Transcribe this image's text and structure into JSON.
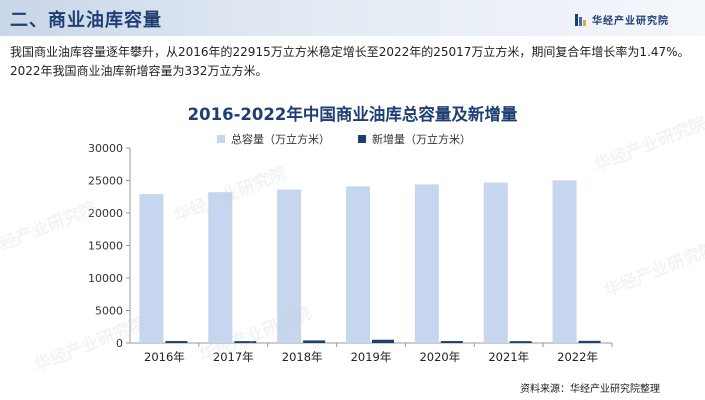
{
  "header": {
    "title": "二、商业油库容量",
    "brand": "华经产业研究院"
  },
  "intro": "我国商业油库容量逐年攀升，从2016年的22915万立方米稳定增长至2022年的25017万立方米，期间复合年增长率为1.47%。2022年我国商业油库新增容量为332万立方米。",
  "source": "资料来源：华经产业研究院整理",
  "watermark": "华经产业研究院",
  "colors": {
    "header_text": "#1f3f73",
    "series_total": "#c5d6ee",
    "series_new": "#1f3f73"
  },
  "chart_data": {
    "type": "bar",
    "title": "2016-2022年中国商业油库总容量及新增量",
    "categories": [
      "2016年",
      "2017年",
      "2018年",
      "2019年",
      "2020年",
      "2021年",
      "2022年"
    ],
    "series": [
      {
        "name": "总容量（万立方米）",
        "values": [
          22915,
          23200,
          23600,
          24100,
          24400,
          24685,
          25017
        ]
      },
      {
        "name": "新增量（万立方米）",
        "values": [
          300,
          285,
          400,
          500,
          300,
          285,
          332
        ]
      }
    ],
    "ylim": [
      0,
      30000
    ],
    "yticks": [
      "30000",
      "25000",
      "20000",
      "15000",
      "10000",
      "5000",
      "0"
    ],
    "ytick_values": [
      30000,
      25000,
      20000,
      15000,
      10000,
      5000,
      0
    ],
    "grid": false,
    "legend_position": "top"
  }
}
